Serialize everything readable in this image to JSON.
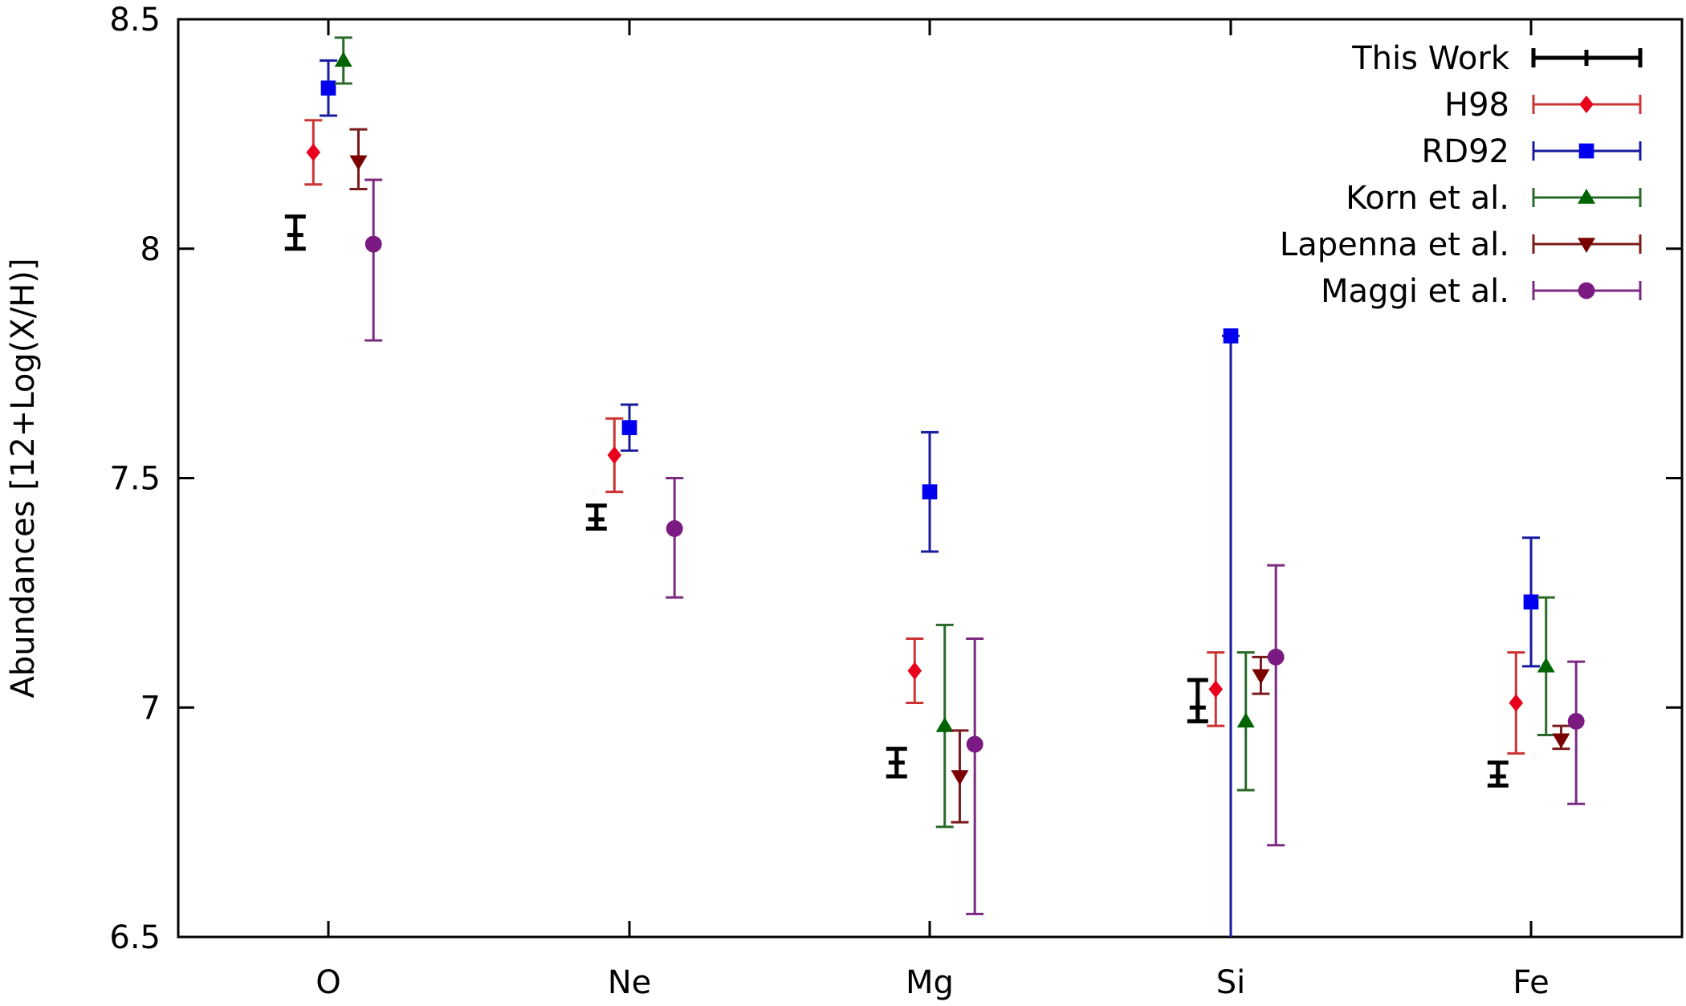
{
  "chart_data": {
    "type": "scatter",
    "title": "",
    "xlabel": "",
    "ylabel": "Abundances [12+Log(X/H)]",
    "categories": [
      "O",
      "Ne",
      "Mg",
      "Si",
      "Fe"
    ],
    "ylim": [
      6.5,
      8.5
    ],
    "yticks": [
      "6.5",
      "7",
      "7.5",
      "8",
      "8.5"
    ],
    "grid": false,
    "legend_position": "top-right",
    "error_bars": true,
    "series": [
      {
        "name": "This Work",
        "color": "#000000",
        "marker": "plus",
        "offset": -0.11,
        "points": [
          {
            "category": "O",
            "value": 8.03,
            "low": 8.0,
            "high": 8.07
          },
          {
            "category": "Ne",
            "value": 7.41,
            "low": 7.39,
            "high": 7.44
          },
          {
            "category": "Mg",
            "value": 6.88,
            "low": 6.85,
            "high": 6.91
          },
          {
            "category": "Si",
            "value": 7.0,
            "low": 6.97,
            "high": 7.06
          },
          {
            "category": "Fe",
            "value": 6.85,
            "low": 6.83,
            "high": 6.88
          }
        ]
      },
      {
        "name": "H98",
        "color": "#e8001c",
        "edge_color": "#cc3333",
        "marker": "diamond",
        "offset": -0.05,
        "points": [
          {
            "category": "O",
            "value": 8.21,
            "low": 8.14,
            "high": 8.28
          },
          {
            "category": "Ne",
            "value": 7.55,
            "low": 7.47,
            "high": 7.63
          },
          {
            "category": "Mg",
            "value": 7.08,
            "low": 7.01,
            "high": 7.15
          },
          {
            "category": "Si",
            "value": 7.04,
            "low": 6.96,
            "high": 7.12
          },
          {
            "category": "Fe",
            "value": 7.01,
            "low": 6.9,
            "high": 7.12
          }
        ]
      },
      {
        "name": "RD92",
        "color": "#0000ee",
        "edge_color": "#1a1aa0",
        "marker": "square",
        "offset": 0.0,
        "points": [
          {
            "category": "O",
            "value": 8.35,
            "low": 8.29,
            "high": 8.41
          },
          {
            "category": "Ne",
            "value": 7.61,
            "low": 7.56,
            "high": 7.66
          },
          {
            "category": "Mg",
            "value": 7.47,
            "low": 7.34,
            "high": 7.6
          },
          {
            "category": "Si",
            "value": 7.81,
            "low": 6.5,
            "high": 7.81
          },
          {
            "category": "Fe",
            "value": 7.23,
            "low": 7.09,
            "high": 7.37
          }
        ]
      },
      {
        "name": "Korn et al.",
        "color": "#006400",
        "edge_color": "#2a6a2a",
        "marker": "triangle-up",
        "offset": 0.05,
        "points": [
          {
            "category": "O",
            "value": 8.41,
            "low": 8.36,
            "high": 8.46
          },
          {
            "category": "Mg",
            "value": 6.96,
            "low": 6.74,
            "high": 7.18
          },
          {
            "category": "Si",
            "value": 6.97,
            "low": 6.82,
            "high": 7.12
          },
          {
            "category": "Fe",
            "value": 7.09,
            "low": 6.94,
            "high": 7.24
          }
        ]
      },
      {
        "name": "Lapenna et al.",
        "color": "#7a0000",
        "edge_color": "#7a1a1a",
        "marker": "triangle-down",
        "offset": 0.1,
        "points": [
          {
            "category": "O",
            "value": 8.19,
            "low": 8.13,
            "high": 8.26
          },
          {
            "category": "Mg",
            "value": 6.85,
            "low": 6.75,
            "high": 6.95
          },
          {
            "category": "Si",
            "value": 7.07,
            "low": 7.03,
            "high": 7.11
          },
          {
            "category": "Fe",
            "value": 6.93,
            "low": 6.91,
            "high": 6.96
          }
        ]
      },
      {
        "name": "Maggi et al.",
        "color": "#7b1a82",
        "edge_color": "#7b2a82",
        "marker": "circle",
        "offset": 0.15,
        "points": [
          {
            "category": "O",
            "value": 8.01,
            "low": 7.8,
            "high": 8.15
          },
          {
            "category": "Ne",
            "value": 7.39,
            "low": 7.24,
            "high": 7.5
          },
          {
            "category": "Mg",
            "value": 6.92,
            "low": 6.55,
            "high": 7.15
          },
          {
            "category": "Si",
            "value": 7.11,
            "low": 6.7,
            "high": 7.31
          },
          {
            "category": "Fe",
            "value": 6.97,
            "low": 6.79,
            "high": 7.1
          }
        ]
      }
    ]
  }
}
